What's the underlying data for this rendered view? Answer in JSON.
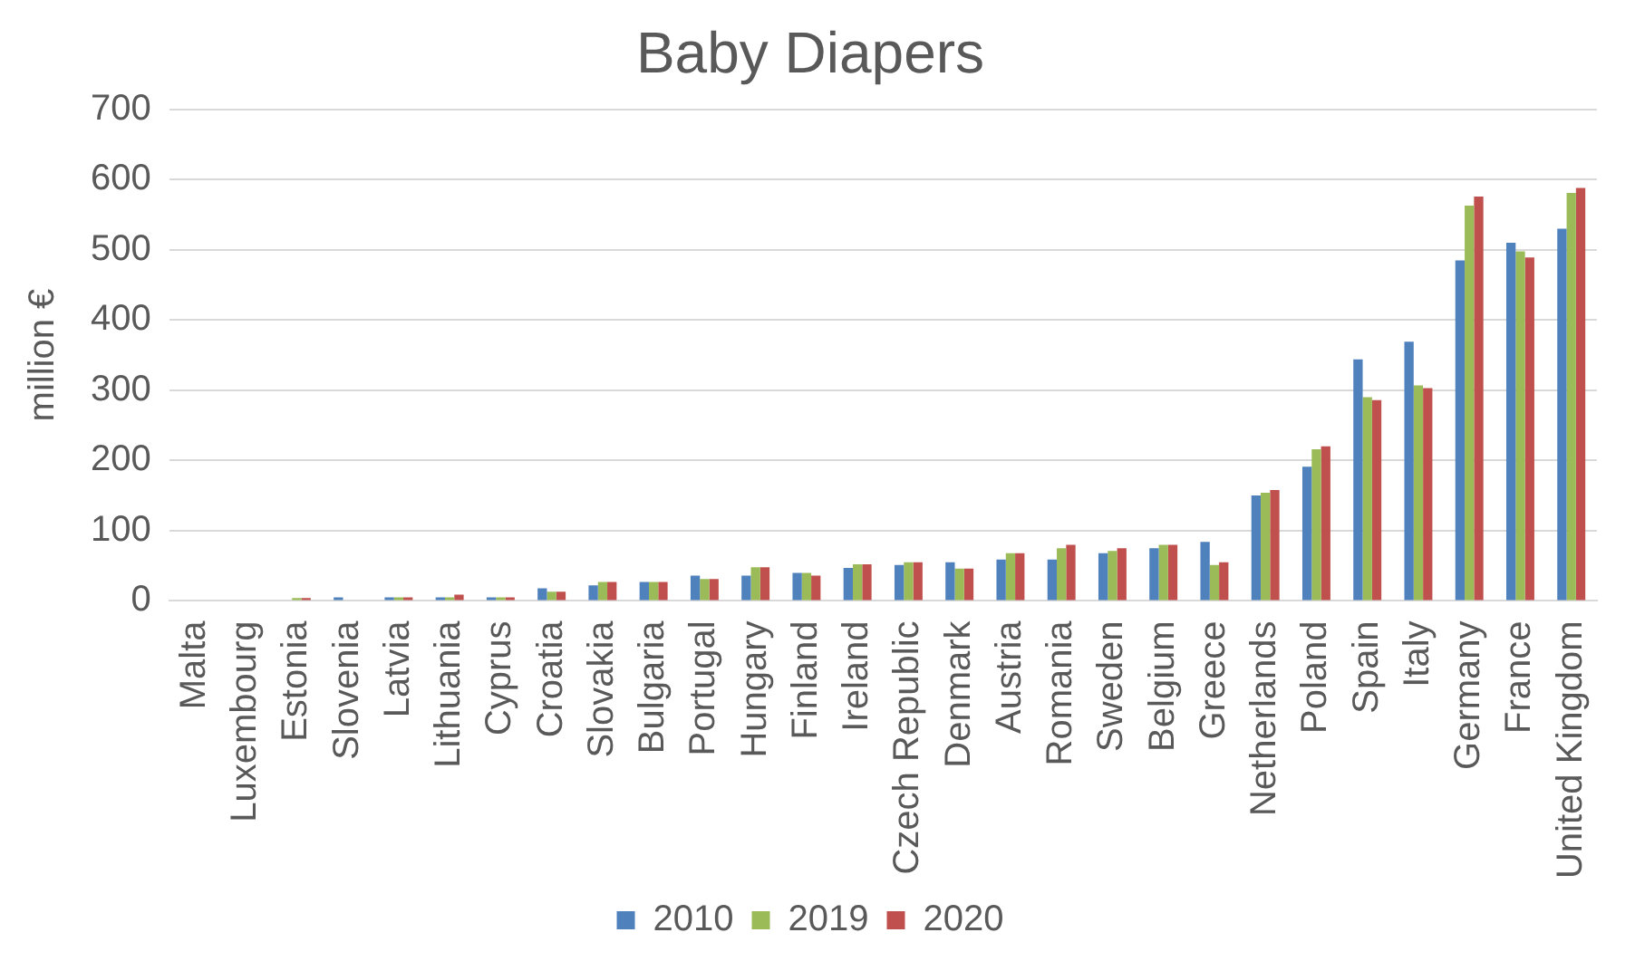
{
  "chart_data": {
    "type": "bar",
    "title": "Baby Diapers",
    "ylabel": "million €",
    "categories": [
      "Malta",
      "Luxembourg",
      "Estonia",
      "Slovenia",
      "Latvia",
      "Lithuania",
      "Cyprus",
      "Croatia",
      "Slovakia",
      "Bulgaria",
      "Portugal",
      "Hungary",
      "Finland",
      "Ireland",
      "Czech Republic",
      "Denmark",
      "Austria",
      "Romania",
      "Sweden",
      "Belgium",
      "Greece",
      "Netherlands",
      "Poland",
      "Spain",
      "Italy",
      "Germany",
      "France",
      "United Kingdom"
    ],
    "series": [
      {
        "name": "2010",
        "color": "#4f81bd",
        "values": [
          0,
          0,
          0,
          5,
          5,
          5,
          5,
          18,
          22,
          27,
          36,
          36,
          40,
          47,
          51,
          55,
          59,
          59,
          68,
          75,
          84,
          150,
          191,
          344,
          369,
          485,
          510,
          530
        ]
      },
      {
        "name": "2019",
        "color": "#9bbb59",
        "values": [
          0,
          0,
          4,
          0,
          5,
          5,
          5,
          13,
          27,
          27,
          31,
          48,
          40,
          52,
          55,
          46,
          68,
          75,
          71,
          80,
          51,
          154,
          216,
          290,
          307,
          563,
          498,
          581
        ]
      },
      {
        "name": "2020",
        "color": "#c0504d",
        "values": [
          0,
          0,
          4,
          0,
          5,
          9,
          5,
          13,
          27,
          27,
          31,
          48,
          36,
          52,
          55,
          46,
          68,
          80,
          75,
          80,
          55,
          158,
          220,
          286,
          303,
          576,
          489,
          588
        ]
      }
    ],
    "ylim": [
      0,
      700
    ],
    "yticks": [
      0,
      100,
      200,
      300,
      400,
      500,
      600,
      700
    ],
    "grid": "y",
    "legend": "bottom"
  }
}
